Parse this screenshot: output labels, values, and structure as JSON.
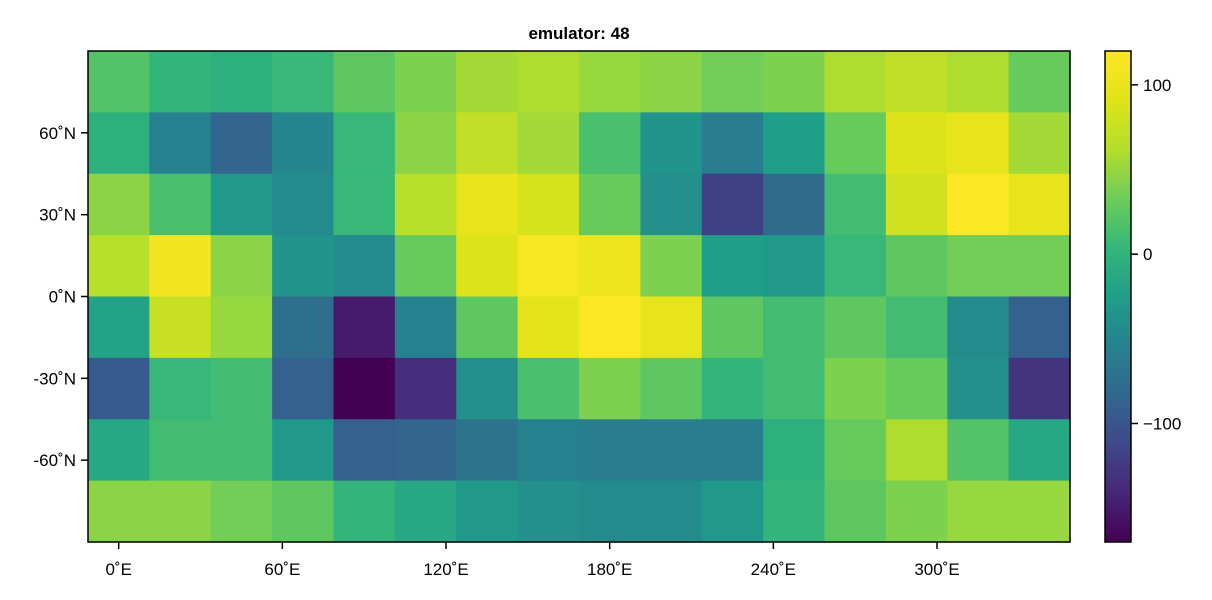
{
  "chart_data": {
    "type": "heatmap",
    "title": "emulator: 48",
    "xlabel": "",
    "ylabel": "",
    "colormap": "viridis",
    "x_ticks": [
      {
        "value": 0,
        "label": "0˚E"
      },
      {
        "value": 60,
        "label": "60˚E"
      },
      {
        "value": 120,
        "label": "120˚E"
      },
      {
        "value": 180,
        "label": "180˚E"
      },
      {
        "value": 240,
        "label": "240˚E"
      },
      {
        "value": 300,
        "label": "300˚E"
      }
    ],
    "y_ticks": [
      {
        "value": 60,
        "label": "60˚N"
      },
      {
        "value": 30,
        "label": "30˚N"
      },
      {
        "value": 0,
        "label": "0˚N"
      },
      {
        "value": -30,
        "label": "-30˚N"
      },
      {
        "value": -60,
        "label": "-60˚N"
      }
    ],
    "xlim": [
      -11.25,
      348.75
    ],
    "ylim": [
      -90,
      90
    ],
    "lon_centers": [
      0,
      22.5,
      45,
      67.5,
      90,
      112.5,
      135,
      157.5,
      180,
      202.5,
      225,
      247.5,
      270,
      292.5,
      315,
      337.5
    ],
    "lat_centers": [
      78.75,
      56.25,
      33.75,
      11.25,
      -11.25,
      -33.75,
      -56.25,
      -78.75
    ],
    "values": [
      [
        20,
        0,
        -5,
        5,
        25,
        40,
        55,
        60,
        50,
        45,
        35,
        40,
        60,
        70,
        60,
        30
      ],
      [
        -5,
        -55,
        -85,
        -50,
        5,
        45,
        70,
        55,
        15,
        -35,
        -60,
        -25,
        30,
        90,
        100,
        55
      ],
      [
        45,
        15,
        -30,
        -45,
        5,
        65,
        100,
        85,
        30,
        -40,
        -120,
        -80,
        10,
        80,
        120,
        100
      ],
      [
        65,
        110,
        45,
        -35,
        -45,
        30,
        90,
        115,
        105,
        40,
        -25,
        -30,
        5,
        25,
        35,
        35
      ],
      [
        -20,
        75,
        50,
        -75,
        -150,
        -55,
        25,
        95,
        120,
        100,
        25,
        10,
        25,
        10,
        -45,
        -90
      ],
      [
        -95,
        5,
        10,
        -90,
        -170,
        -135,
        -40,
        15,
        40,
        25,
        0,
        10,
        40,
        30,
        -40,
        -130
      ],
      [
        -15,
        10,
        10,
        -30,
        -90,
        -85,
        -70,
        -55,
        -60,
        -60,
        -60,
        -5,
        30,
        60,
        20,
        -15
      ],
      [
        45,
        45,
        35,
        25,
        0,
        -15,
        -30,
        -40,
        -45,
        -45,
        -30,
        0,
        25,
        40,
        50,
        50
      ]
    ],
    "colorbar": {
      "range": [
        -170,
        120
      ],
      "ticks": [
        {
          "value": 100,
          "label": "100"
        },
        {
          "value": 0,
          "label": "0"
        },
        {
          "value": -100,
          "label": "−100"
        }
      ]
    }
  }
}
